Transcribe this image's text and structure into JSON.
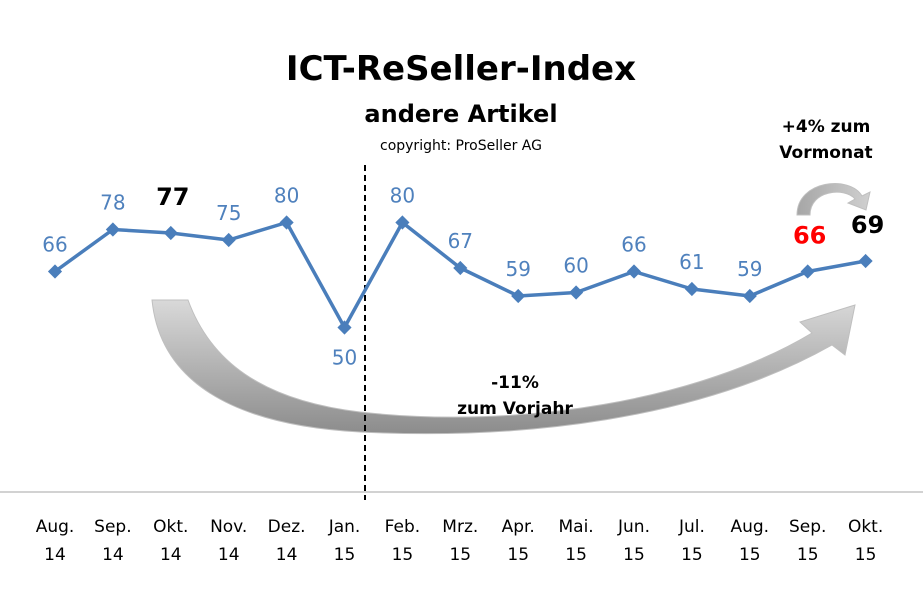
{
  "chart_data": {
    "type": "line",
    "title": "ICT-ReSeller-Index",
    "subtitle": "andere Artikel",
    "copyright": "copyright: ProSeller AG",
    "categories": [
      [
        "Aug.",
        "14"
      ],
      [
        "Sep.",
        "14"
      ],
      [
        "Okt.",
        "14"
      ],
      [
        "Nov.",
        "14"
      ],
      [
        "Dez.",
        "14"
      ],
      [
        "Jan.",
        "15"
      ],
      [
        "Feb.",
        "15"
      ],
      [
        "Mrz.",
        "15"
      ],
      [
        "Apr.",
        "15"
      ],
      [
        "Mai.",
        "15"
      ],
      [
        "Jun.",
        "15"
      ],
      [
        "Jul.",
        "15"
      ],
      [
        "Aug.",
        "15"
      ],
      [
        "Sep.",
        "15"
      ],
      [
        "Okt.",
        "15"
      ]
    ],
    "values": [
      66,
      78,
      77,
      75,
      80,
      50,
      80,
      67,
      59,
      60,
      66,
      61,
      59,
      66,
      69
    ],
    "ylim": [
      3,
      100
    ],
    "grid": false,
    "line_color": "#4A7EBB",
    "label_color": "#4F81BD",
    "highlight": {
      "2": "#000000",
      "13": "#FF0000",
      "14": "#000000"
    },
    "year_divider_after_index": 5,
    "annotations": {
      "yoy": [
        "-11%",
        "zum Vorjahr"
      ],
      "mom": [
        "+4% zum",
        "Vormonat"
      ]
    }
  }
}
